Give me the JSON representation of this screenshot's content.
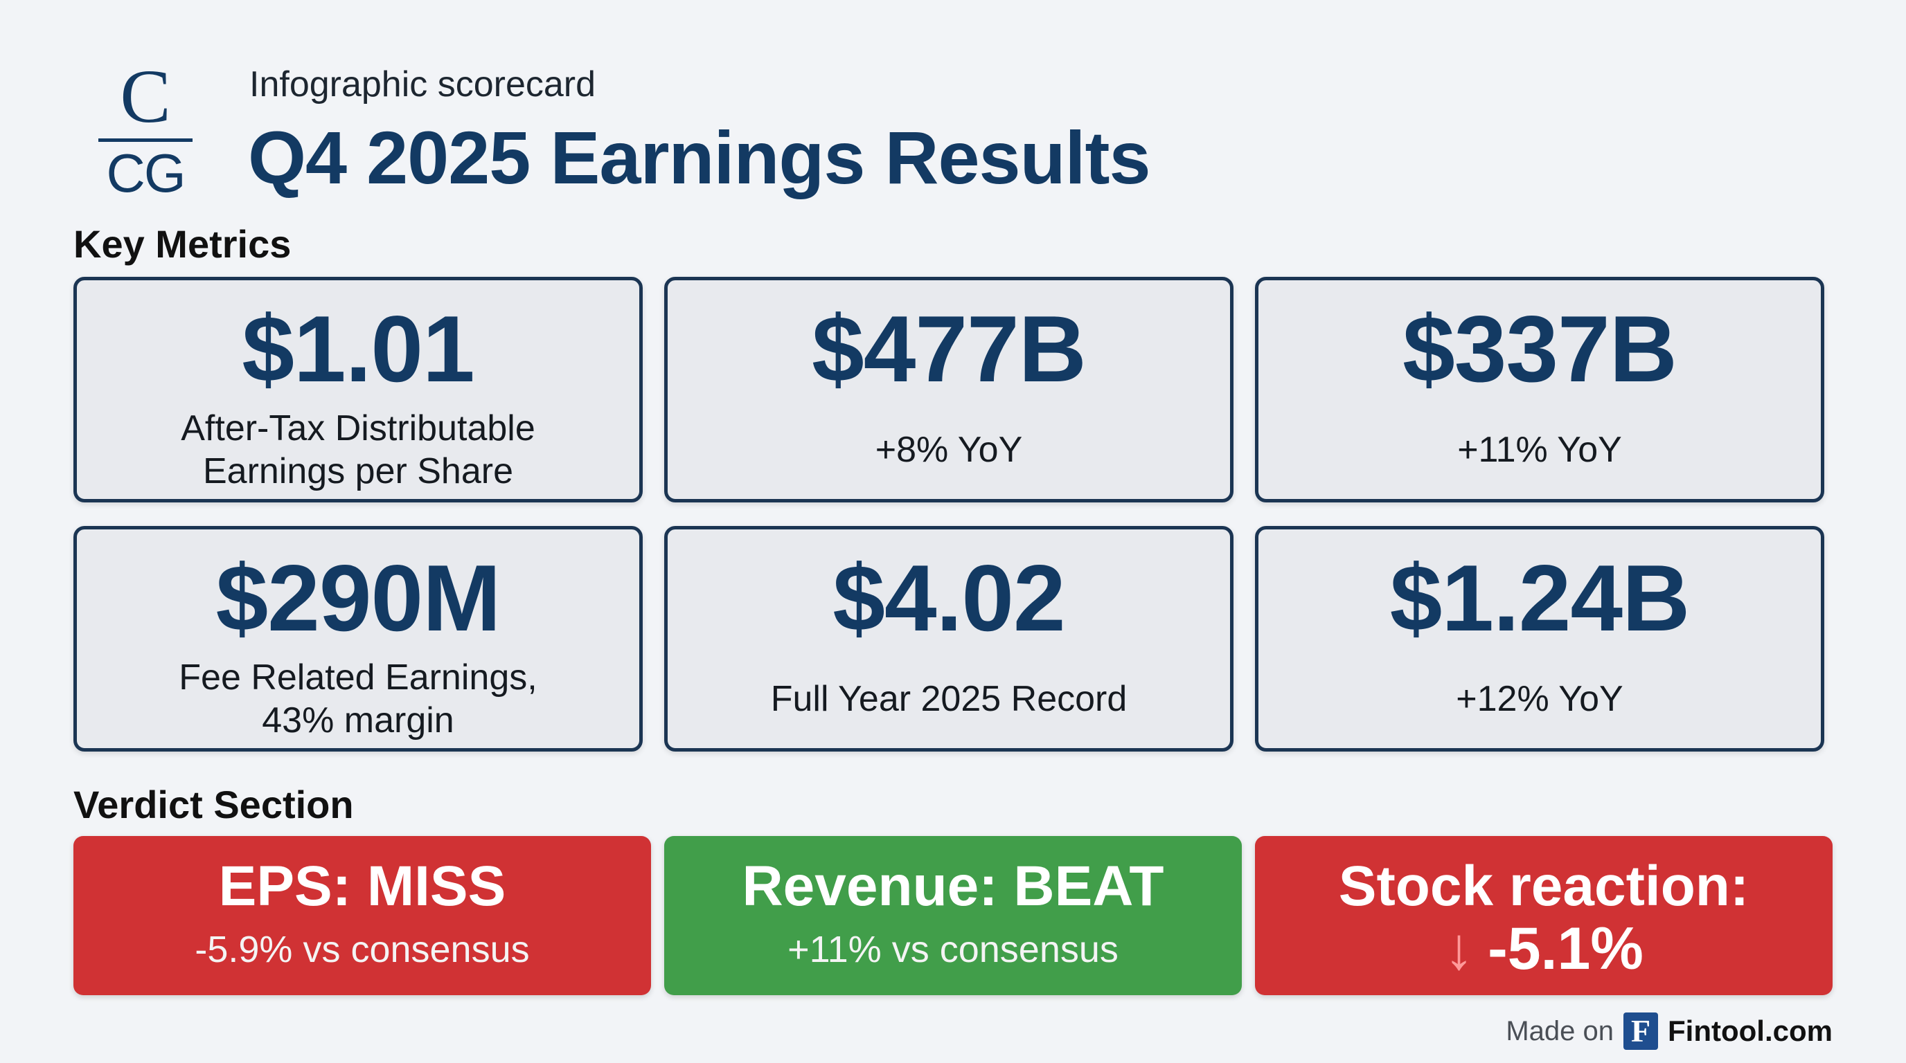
{
  "header": {
    "logo_top": "C",
    "logo_bottom": "CG",
    "subtitle": "Infographic scorecard",
    "title": "Q4 2025 Earnings Results"
  },
  "key_metrics": {
    "heading": "Key Metrics",
    "cards": [
      {
        "value": "$1.01",
        "caption": "After-Tax Distributable\nEarnings per Share"
      },
      {
        "value": "$477B",
        "caption": "+8% YoY"
      },
      {
        "value": "$337B",
        "caption": "+11% YoY"
      },
      {
        "value": "$290M",
        "caption": "Fee Related Earnings,\n43% margin"
      },
      {
        "value": "$4.02",
        "caption": "Full Year 2025 Record"
      },
      {
        "value": "$1.24B",
        "caption": "+12% YoY"
      }
    ]
  },
  "verdict": {
    "heading": "Verdict Section",
    "eps": {
      "title": "EPS: MISS",
      "detail": "-5.9% vs consensus",
      "color": "#d03234"
    },
    "revenue": {
      "title": "Revenue: BEAT",
      "detail": "+11% vs consensus",
      "color": "#419e4a"
    },
    "stock": {
      "title": "Stock reaction:",
      "arrow_icon": "arrow-down-icon",
      "arrow": "↓",
      "value": "-5.1%",
      "color": "#d03234"
    }
  },
  "footer": {
    "made_on": "Made on",
    "brand_icon": "F",
    "brand": "Fintool.com"
  }
}
